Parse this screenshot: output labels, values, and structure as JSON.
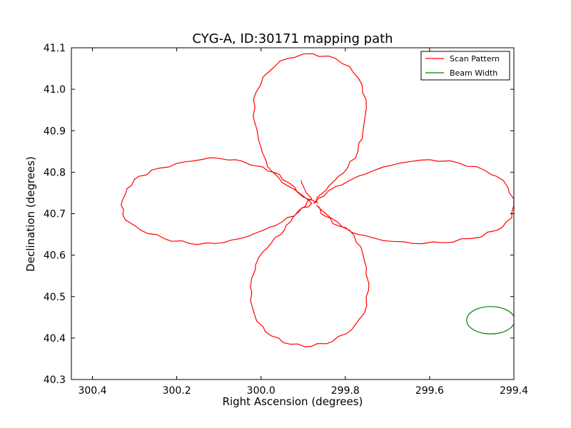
{
  "chart_data": {
    "type": "line",
    "title": "CYG-A, ID:30171 mapping path",
    "xlabel": "Right Ascension (degrees)",
    "ylabel": "Declination (degrees)",
    "xlim": [
      300.45,
      299.4
    ],
    "ylim": [
      40.3,
      41.1
    ],
    "x_reversed": true,
    "x_ticks": [
      300.4,
      300.2,
      300.0,
      299.8,
      299.6,
      299.4
    ],
    "x_tick_labels": [
      "300.4",
      "300.2",
      "300.0",
      "299.8",
      "299.6",
      "299.4"
    ],
    "y_ticks": [
      40.3,
      40.4,
      40.5,
      40.6,
      40.7,
      40.8,
      40.9,
      41.0,
      41.1
    ],
    "y_tick_labels": [
      "40.3",
      "40.4",
      "40.5",
      "40.6",
      "40.7",
      "40.8",
      "40.9",
      "41.0",
      "41.1"
    ],
    "grid": false,
    "legend_position": "top-right",
    "series": [
      {
        "name": "Scan Pattern",
        "color": "#ff0000",
        "points": [
          [
            299.865,
            40.725
          ],
          [
            299.9,
            40.74
          ],
          [
            299.935,
            40.775
          ],
          [
            299.97,
            40.8
          ],
          [
            300.01,
            40.815
          ],
          [
            300.06,
            40.83
          ],
          [
            300.12,
            40.835
          ],
          [
            300.18,
            40.825
          ],
          [
            300.24,
            40.81
          ],
          [
            300.29,
            40.79
          ],
          [
            300.318,
            40.76
          ],
          [
            300.332,
            40.72
          ],
          [
            300.322,
            40.685
          ],
          [
            300.285,
            40.66
          ],
          [
            300.23,
            40.64
          ],
          [
            300.17,
            40.628
          ],
          [
            300.11,
            40.628
          ],
          [
            300.05,
            40.64
          ],
          [
            299.995,
            40.66
          ],
          [
            299.95,
            40.68
          ],
          [
            299.91,
            40.705
          ],
          [
            299.88,
            40.725
          ],
          [
            299.91,
            40.75
          ],
          [
            299.95,
            40.775
          ],
          [
            299.985,
            40.815
          ],
          [
            300.0,
            40.86
          ],
          [
            300.015,
            40.92
          ],
          [
            300.018,
            40.975
          ],
          [
            299.995,
            41.03
          ],
          [
            299.955,
            41.068
          ],
          [
            299.9,
            41.085
          ],
          [
            299.84,
            41.08
          ],
          [
            299.79,
            41.055
          ],
          [
            299.76,
            41.01
          ],
          [
            299.75,
            40.955
          ],
          [
            299.758,
            40.9
          ],
          [
            299.77,
            40.85
          ],
          [
            299.795,
            40.81
          ],
          [
            299.825,
            40.78
          ],
          [
            299.86,
            40.745
          ],
          [
            299.875,
            40.725
          ],
          [
            299.84,
            40.755
          ],
          [
            299.79,
            40.78
          ],
          [
            299.73,
            40.805
          ],
          [
            299.67,
            40.822
          ],
          [
            299.6,
            40.83
          ],
          [
            299.53,
            40.822
          ],
          [
            299.47,
            40.805
          ],
          [
            299.425,
            40.78
          ],
          [
            299.4,
            40.735
          ],
          [
            299.405,
            40.69
          ],
          [
            299.44,
            40.66
          ],
          [
            299.5,
            40.64
          ],
          [
            299.57,
            40.63
          ],
          [
            299.64,
            40.628
          ],
          [
            299.71,
            40.635
          ],
          [
            299.77,
            40.65
          ],
          [
            299.815,
            40.67
          ],
          [
            299.85,
            40.695
          ],
          [
            299.868,
            40.72
          ],
          [
            299.835,
            40.69
          ],
          [
            299.79,
            40.66
          ],
          [
            299.763,
            40.62
          ],
          [
            299.75,
            40.57
          ],
          [
            299.745,
            40.515
          ],
          [
            299.755,
            40.46
          ],
          [
            299.785,
            40.42
          ],
          [
            299.83,
            40.392
          ],
          [
            299.88,
            40.38
          ],
          [
            299.93,
            40.385
          ],
          [
            299.975,
            40.405
          ],
          [
            300.01,
            40.44
          ],
          [
            300.025,
            40.49
          ],
          [
            300.022,
            40.545
          ],
          [
            300.005,
            40.595
          ],
          [
            299.975,
            40.63
          ],
          [
            299.945,
            40.66
          ],
          [
            299.925,
            40.69
          ],
          [
            299.905,
            40.712
          ],
          [
            299.88,
            40.735
          ],
          [
            299.895,
            40.755
          ],
          [
            299.905,
            40.78
          ]
        ]
      },
      {
        "name": "Beam Width",
        "color": "#008000",
        "center": [
          299.455,
          40.443
        ],
        "radius_deg": 0.057
      }
    ]
  }
}
